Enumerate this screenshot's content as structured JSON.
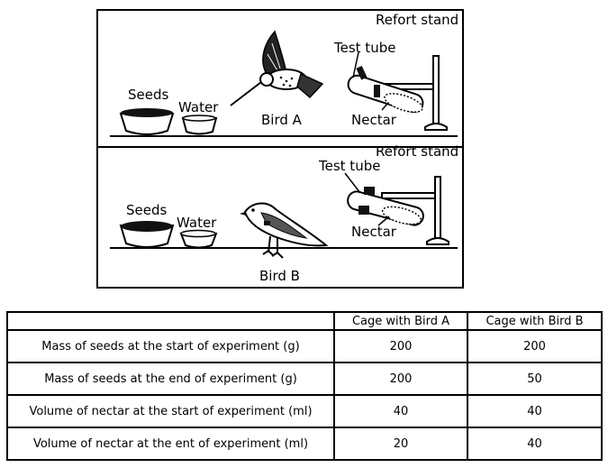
{
  "panel_a": {
    "labels": {
      "retort_stand": "Refort stand",
      "test_tube": "Test tube",
      "seeds": "Seeds",
      "water": "Water",
      "bird": "Bird A",
      "nectar": "Nectar"
    }
  },
  "panel_b": {
    "labels": {
      "retort_stand": "Refort stand",
      "test_tube": "Test tube",
      "seeds": "Seeds",
      "water": "Water",
      "bird": "Bird B",
      "nectar": "Nectar"
    }
  },
  "table": {
    "headers": [
      "",
      "Cage with Bird A",
      "Cage with Bird B"
    ],
    "rows": [
      {
        "label": "Mass of seeds at the start of experiment (g)",
        "a": "200",
        "b": "200"
      },
      {
        "label": "Mass of seeds at the end of experiment (g)",
        "a": "200",
        "b": "50"
      },
      {
        "label": "Volume of nectar at the start of experiment (ml)",
        "a": "40",
        "b": "40"
      },
      {
        "label": "Volume of nectar at the ent  of experiment (ml)",
        "a": "20",
        "b": "40"
      }
    ]
  }
}
